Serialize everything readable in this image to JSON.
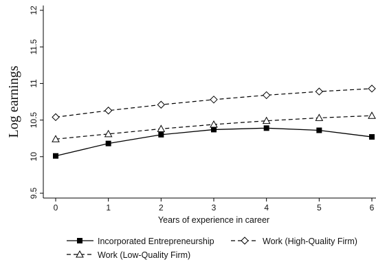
{
  "chart_data": {
    "type": "line",
    "title": "",
    "xlabel": "Years of experience in career",
    "ylabel": "Log earnings",
    "x": [
      0,
      1,
      2,
      3,
      4,
      5,
      6
    ],
    "xlim": [
      0,
      6
    ],
    "ylim": [
      9.5,
      12
    ],
    "xticks": [
      "0",
      "1",
      "2",
      "3",
      "4",
      "5",
      "6"
    ],
    "yticks": [
      "9.5",
      "10",
      "10.5",
      "11",
      "11.5",
      "12"
    ],
    "grid": false,
    "legend_position": "bottom",
    "series": [
      {
        "name": "Incorporated Entrepreneurship",
        "marker": "filled-square",
        "line_style": "solid",
        "color": "#000000",
        "values": [
          10.01,
          10.18,
          10.3,
          10.37,
          10.39,
          10.36,
          10.27
        ]
      },
      {
        "name": "Work (High-Quality Firm)",
        "marker": "hollow-diamond",
        "line_style": "dashed",
        "color": "#000000",
        "values": [
          10.54,
          10.63,
          10.71,
          10.78,
          10.84,
          10.89,
          10.93
        ]
      },
      {
        "name": "Work (Low-Quality Firm)",
        "marker": "hollow-triangle",
        "line_style": "dashed",
        "color": "#000000",
        "values": [
          10.24,
          10.31,
          10.38,
          10.44,
          10.49,
          10.53,
          10.56
        ]
      }
    ]
  }
}
